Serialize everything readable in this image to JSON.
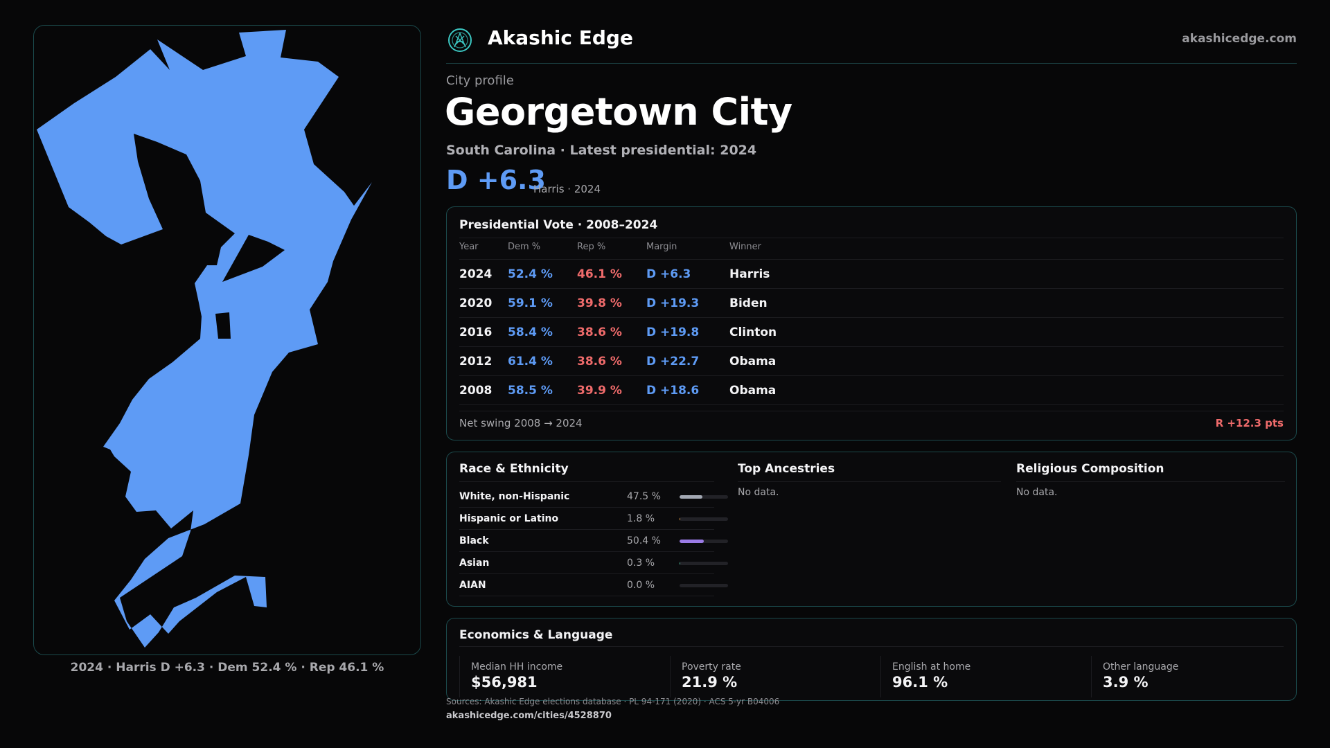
{
  "brand": {
    "name": "Akashic Edge",
    "site": "akashicedge.com"
  },
  "profile": {
    "kicker": "City profile",
    "title": "Georgetown City",
    "subtitle": "South Carolina · Latest presidential: 2024",
    "margin": "D +6.3",
    "margin_note": "Harris · 2024"
  },
  "map": {
    "caption": "2024 · Harris D +6.3 · Dem 52.4 % · Rep 46.1 %",
    "fill_color": "#5e9bf5"
  },
  "presidential": {
    "title": "Presidential Vote · 2008–2024",
    "headers": {
      "year": "Year",
      "dem": "Dem %",
      "rep": "Rep %",
      "margin": "Margin",
      "winner": "Winner"
    },
    "rows": [
      {
        "year": "2024",
        "dem": "52.4 %",
        "rep": "46.1 %",
        "margin": "D +6.3",
        "winner": "Harris"
      },
      {
        "year": "2020",
        "dem": "59.1 %",
        "rep": "39.8 %",
        "margin": "D +19.3",
        "winner": "Biden"
      },
      {
        "year": "2016",
        "dem": "58.4 %",
        "rep": "38.6 %",
        "margin": "D +19.8",
        "winner": "Clinton"
      },
      {
        "year": "2012",
        "dem": "61.4 %",
        "rep": "38.6 %",
        "margin": "D +22.7",
        "winner": "Obama"
      },
      {
        "year": "2008",
        "dem": "58.5 %",
        "rep": "39.9 %",
        "margin": "D +18.6",
        "winner": "Obama"
      }
    ],
    "swing_label": "Net swing 2008 → 2024",
    "swing_value": "R +12.3 pts"
  },
  "race": {
    "title": "Race & Ethnicity",
    "rows": [
      {
        "name": "White, non-Hispanic",
        "pct": "47.5 %",
        "value": 47.5,
        "color": "#a3a8b3"
      },
      {
        "name": "Hispanic or Latino",
        "pct": "1.8 %",
        "value": 1.8,
        "color": "#e8a24a"
      },
      {
        "name": "Black",
        "pct": "50.4 %",
        "value": 50.4,
        "color": "#9b7be6"
      },
      {
        "name": "Asian",
        "pct": "0.3 %",
        "value": 0.3,
        "color": "#4fc3a1"
      },
      {
        "name": "AIAN",
        "pct": "0.0 %",
        "value": 0.0,
        "color": "#d27a5a"
      }
    ]
  },
  "ancestries": {
    "title": "Top Ancestries",
    "empty": "No data."
  },
  "religion": {
    "title": "Religious Composition",
    "empty": "No data."
  },
  "economics": {
    "title": "Economics & Language",
    "metrics": [
      {
        "label": "Median HH income",
        "value": "$56,981"
      },
      {
        "label": "Poverty rate",
        "value": "21.9 %"
      },
      {
        "label": "English at home",
        "value": "96.1 %"
      },
      {
        "label": "Other language",
        "value": "3.9 %"
      }
    ]
  },
  "footer": {
    "sources": "Sources: Akashic Edge elections database · PL 94-171 (2020) · ACS 5-yr B04006",
    "permalink": "akashicedge.com/cities/4528870"
  }
}
